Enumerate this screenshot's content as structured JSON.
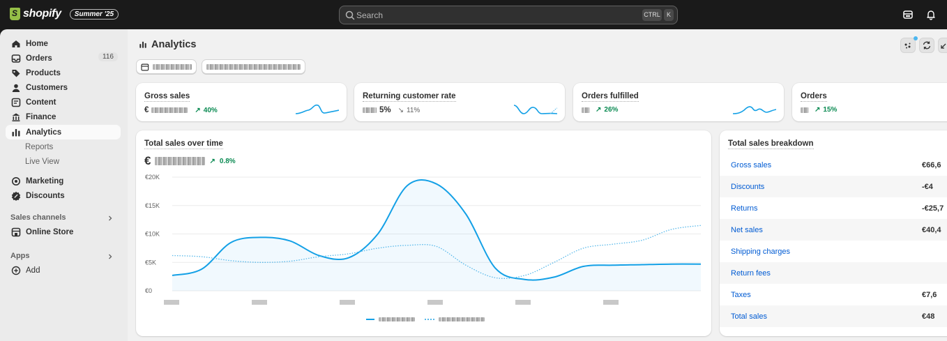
{
  "topbar": {
    "logo_text": "shopify",
    "edition_badge": "Summer '25",
    "search_placeholder": "Search",
    "shortcut_ctrl": "CTRL",
    "shortcut_k": "K"
  },
  "sidebar": {
    "items": [
      {
        "label": "Home",
        "icon": "home-icon"
      },
      {
        "label": "Orders",
        "icon": "inbox-icon",
        "count": "116"
      },
      {
        "label": "Products",
        "icon": "tag-icon"
      },
      {
        "label": "Customers",
        "icon": "person-icon"
      },
      {
        "label": "Content",
        "icon": "content-icon"
      },
      {
        "label": "Finance",
        "icon": "bank-icon"
      },
      {
        "label": "Analytics",
        "icon": "chart-icon",
        "active": true
      }
    ],
    "analytics_sub": [
      "Reports",
      "Live View"
    ],
    "items2": [
      {
        "label": "Marketing",
        "icon": "target-icon"
      },
      {
        "label": "Discounts",
        "icon": "discount-icon"
      }
    ],
    "sales_channels_label": "Sales channels",
    "online_store_label": "Online Store",
    "apps_label": "Apps",
    "add_label": "Add"
  },
  "page": {
    "title": "Analytics"
  },
  "metrics": [
    {
      "label": "Gross sales",
      "value_prefix": "€",
      "delta": "40%",
      "direction": "up"
    },
    {
      "label": "Returning customer rate",
      "value_suffix": "5%",
      "delta": "11%",
      "direction": "down"
    },
    {
      "label": "Orders fulfilled",
      "delta": "26%",
      "direction": "up"
    },
    {
      "label": "Orders",
      "delta": "15%",
      "direction": "up"
    }
  ],
  "sales_over_time": {
    "title": "Total sales over time",
    "value_prefix": "€",
    "delta": "0.8%"
  },
  "chart_data": {
    "type": "line",
    "title": "Total sales over time",
    "y_ticks": [
      "€20K",
      "€15K",
      "€10K",
      "€5K",
      "€0"
    ],
    "ylim": [
      0,
      20000
    ],
    "series": [
      {
        "style": "solid",
        "color": "#13a0e6",
        "values": [
          2700,
          3800,
          8500,
          9400,
          8800,
          6200,
          5800,
          10000,
          18500,
          18800,
          13500,
          4000,
          2000,
          2400,
          4300,
          4500,
          4600,
          4700,
          4700
        ]
      },
      {
        "style": "dotted",
        "color": "#56b8ea",
        "values": [
          6200,
          6000,
          5300,
          5000,
          5200,
          6000,
          6500,
          7500,
          8000,
          7800,
          4500,
          2300,
          2700,
          5000,
          7500,
          8200,
          8900,
          10800,
          11500
        ]
      }
    ],
    "grid": true
  },
  "breakdown": {
    "title": "Total sales breakdown",
    "rows": [
      {
        "label": "Gross sales",
        "value": "€66,6"
      },
      {
        "label": "Discounts",
        "value": "-€4"
      },
      {
        "label": "Returns",
        "value": "-€25,7"
      },
      {
        "label": "Net sales",
        "value": "€40,4"
      },
      {
        "label": "Shipping charges",
        "value": ""
      },
      {
        "label": "Return fees",
        "value": ""
      },
      {
        "label": "Taxes",
        "value": "€7,6"
      },
      {
        "label": "Total sales",
        "value": "€48"
      }
    ]
  },
  "colors": {
    "accent": "#13a0e6",
    "link": "#005bd3",
    "positive": "#0a8a52"
  }
}
